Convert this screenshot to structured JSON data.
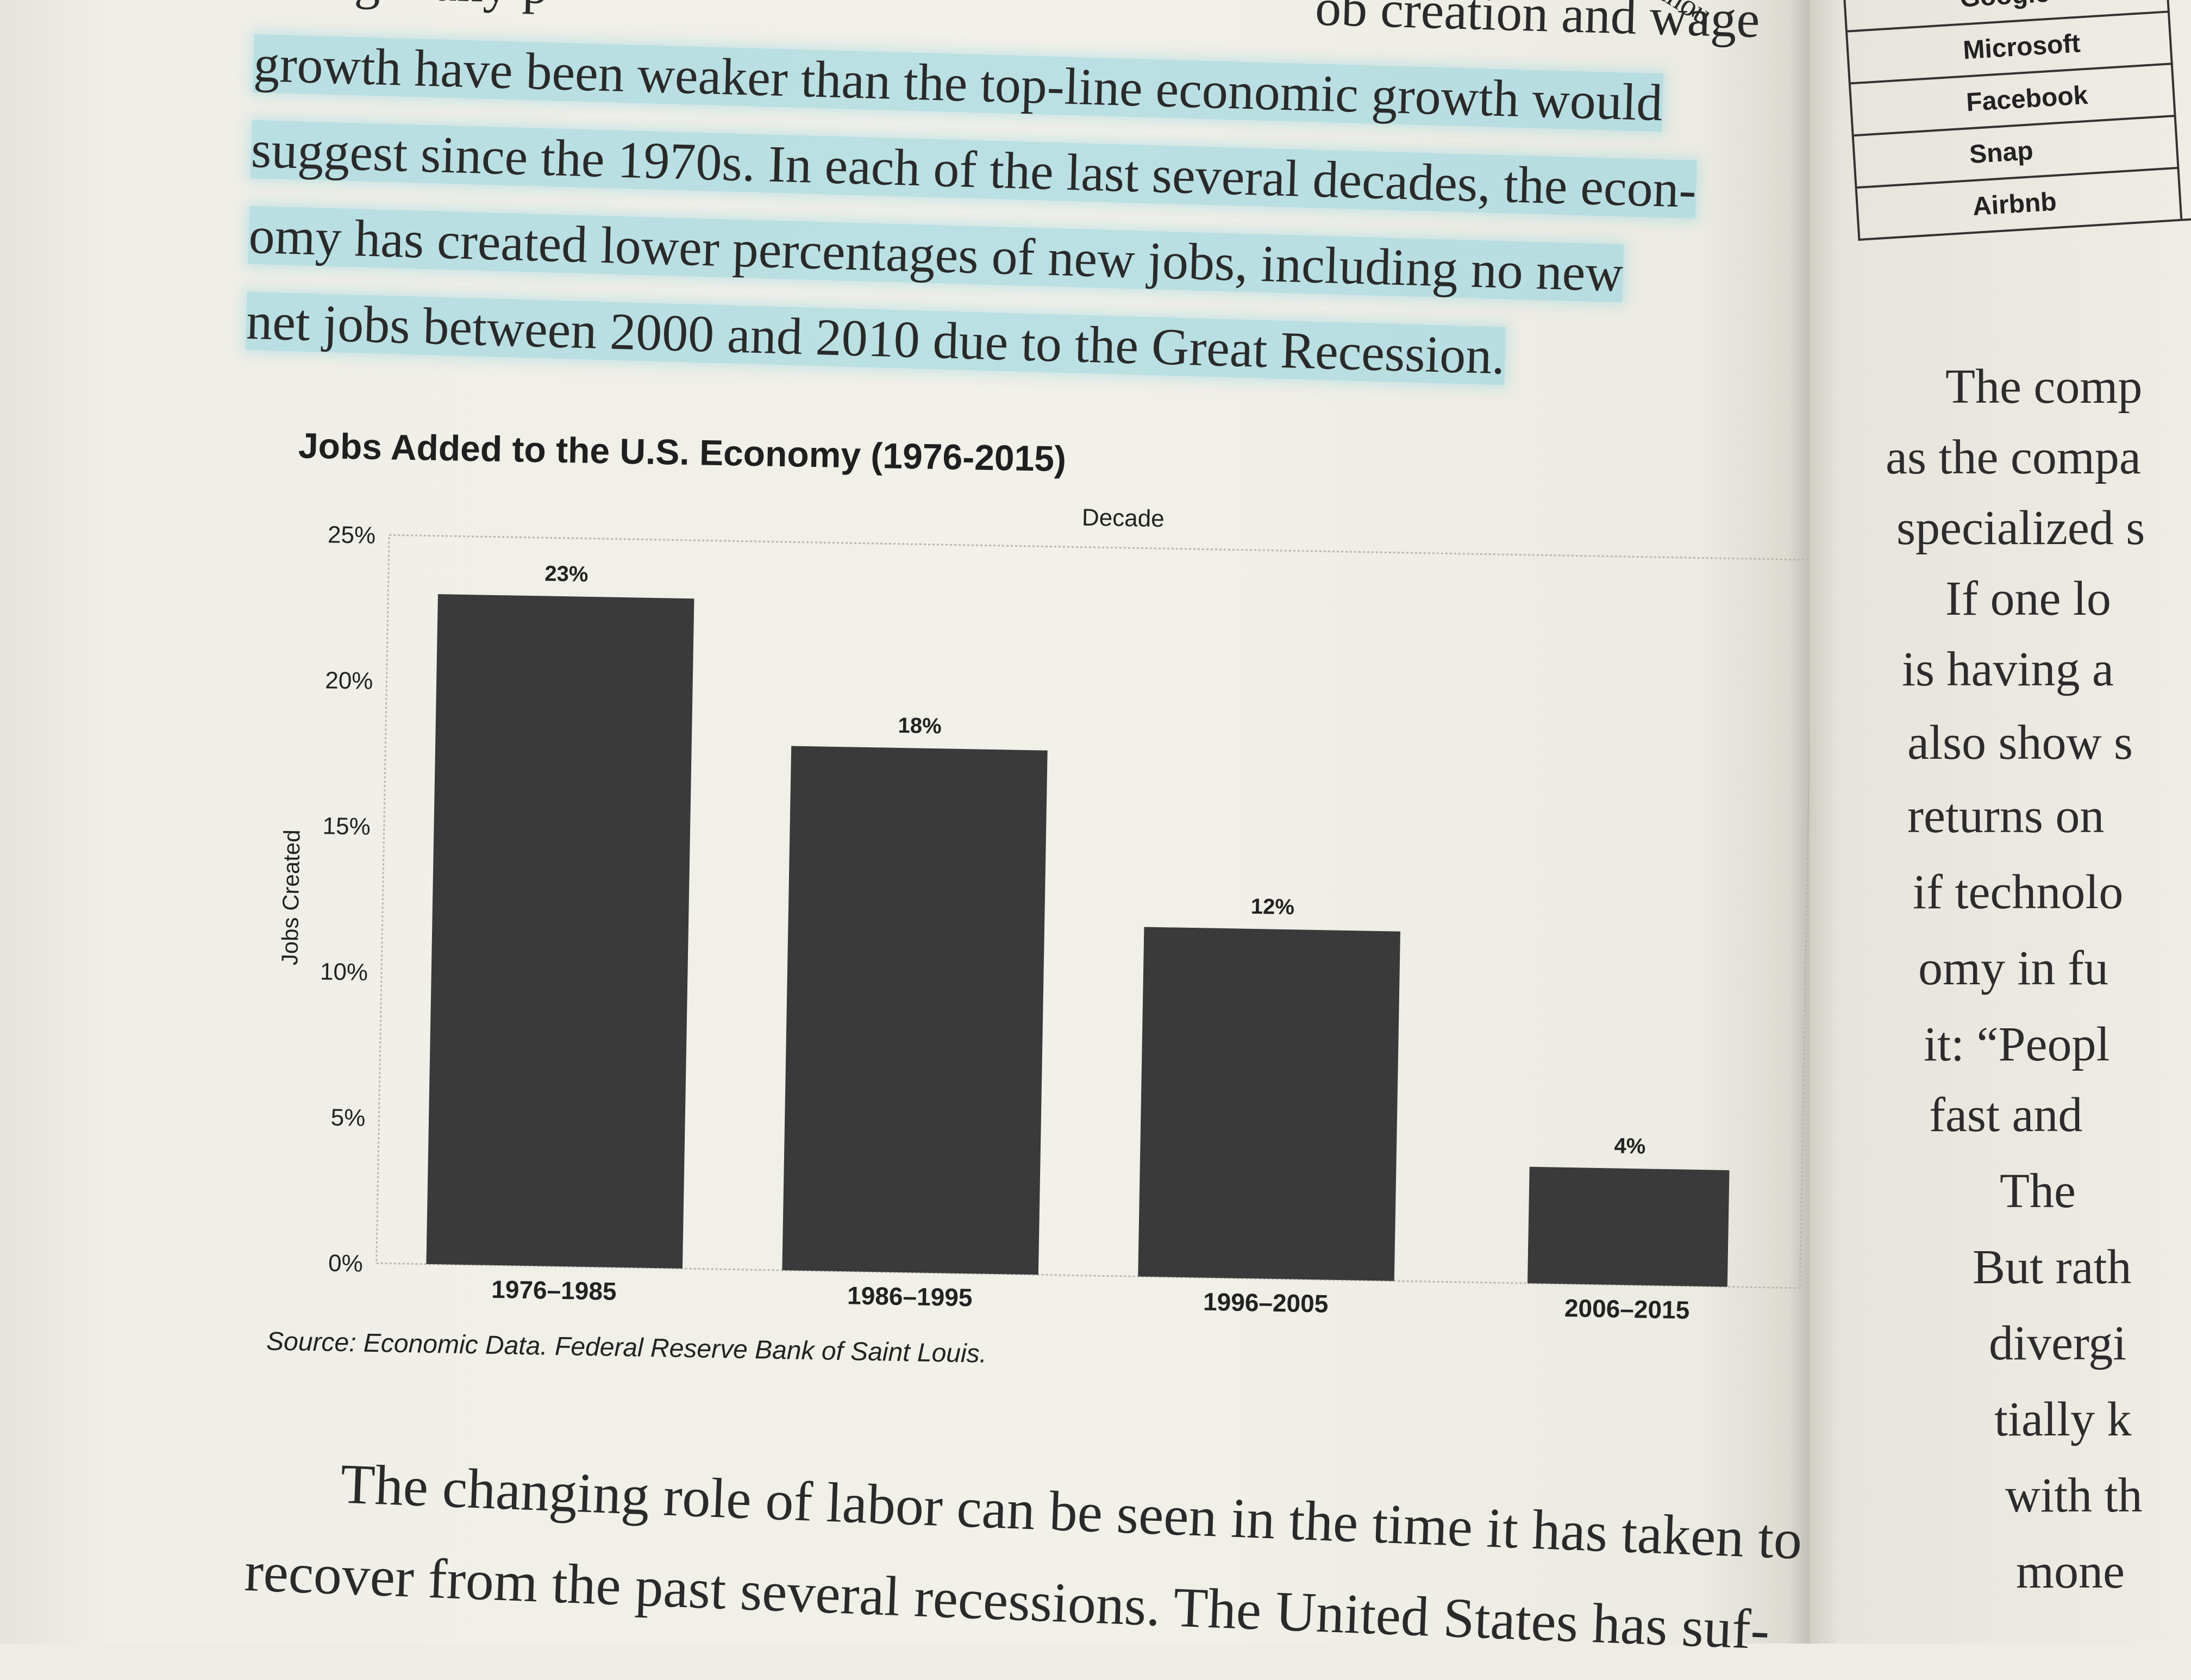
{
  "top_paragraph": {
    "lines": [
      "hiring many p",
      "growth have been weaker than the top-line economic growth would",
      "suggest since the 1970s. In each of the last several decades, the econ-",
      "omy has created lower percentages of new jobs, including no new",
      "net jobs between 2000 and 2010 due to the Great Recession."
    ],
    "fragment_top_right": "ob creation and wage",
    "fragment_corner": "withou"
  },
  "chart_data": {
    "type": "bar",
    "title": "Jobs Added to the U.S. Economy (1976-2015)",
    "xlabel": "Decade",
    "ylabel": "Jobs Created",
    "categories": [
      "1976–1985",
      "1986–1995",
      "1996–2005",
      "2006–2015"
    ],
    "values": [
      23,
      18,
      12,
      4
    ],
    "value_labels": [
      "23%",
      "18%",
      "12%",
      "4%"
    ],
    "ylim": [
      0,
      25
    ],
    "yticks": [
      "0%",
      "5%",
      "10%",
      "15%",
      "20%",
      "25%"
    ],
    "bar_color": "#3a3a3a",
    "grid": false,
    "legend": false,
    "source": "Source: Economic Data. Federal Reserve Bank of Saint Louis."
  },
  "bottom_paragraph": {
    "lines": [
      "The changing role of labor can be seen in the time it has taken to",
      "recover from the past several recessions. The United States has suf-"
    ]
  },
  "right_page": {
    "table_rows": [
      "Google",
      "Microsoft",
      "Facebook",
      "Snap",
      "Airbnb"
    ],
    "text_lines": [
      "The comp",
      "as the compa",
      "specialized s",
      "If one lo",
      "is having a",
      "also show s",
      "returns on",
      "if technolo",
      "omy in fu",
      "it: “Peopl",
      "fast and",
      "The",
      "But rath",
      "divergi",
      "tially k",
      "with th",
      "mone"
    ]
  }
}
